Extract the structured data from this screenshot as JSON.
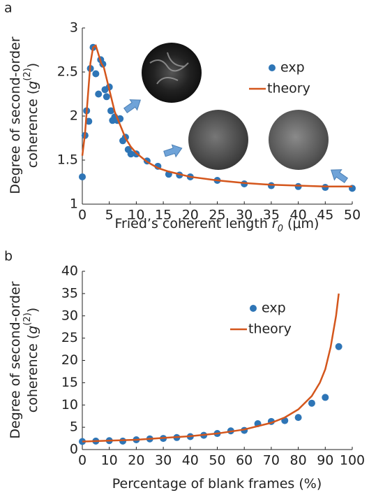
{
  "chart_data": [
    {
      "type": "line",
      "label": "a",
      "xlabel": [
        "Fried’s coherent length ",
        "r",
        "0",
        " (μm)"
      ],
      "ylabel": [
        "Degree of second-order",
        [
          "coherence (",
          "g",
          "(2)",
          ")"
        ]
      ],
      "xlim": [
        0,
        50
      ],
      "xticks": [
        0,
        5,
        10,
        15,
        20,
        25,
        30,
        35,
        40,
        45,
        50
      ],
      "ylim": [
        1,
        3
      ],
      "yticks": [
        1,
        1.5,
        2,
        2.5,
        3
      ],
      "legend": "upper right",
      "series": [
        {
          "name": "exp",
          "color": "#2e75b6",
          "marker": "dot",
          "x": [
            0,
            0.5,
            0.8,
            1.2,
            1.5,
            2.0,
            2.5,
            3.0,
            3.4,
            3.8,
            4.2,
            4.5,
            5.0,
            5.3,
            5.6,
            6.0,
            6.5,
            7.0,
            7.5,
            8.0,
            8.5,
            9.0,
            10,
            12,
            14,
            16,
            18,
            20,
            25,
            30,
            35,
            40,
            45,
            50
          ],
          "values": [
            1.31,
            1.78,
            2.06,
            1.94,
            2.54,
            2.78,
            2.48,
            2.25,
            2.64,
            2.59,
            2.3,
            2.22,
            2.33,
            2.06,
            1.95,
            1.99,
            1.95,
            1.97,
            1.72,
            1.76,
            1.62,
            1.57,
            1.57,
            1.49,
            1.43,
            1.34,
            1.33,
            1.31,
            1.27,
            1.23,
            1.21,
            1.2,
            1.19,
            1.18
          ]
        },
        {
          "name": "theory",
          "color": "#d4561c",
          "marker": "line",
          "x": [
            0,
            0.5,
            1,
            1.5,
            2,
            2.5,
            3,
            3.5,
            4,
            5,
            6,
            7,
            8,
            9,
            10,
            12,
            14,
            16,
            18,
            20,
            25,
            30,
            35,
            40,
            45,
            50
          ],
          "values": [
            1.55,
            1.8,
            2.2,
            2.6,
            2.78,
            2.8,
            2.7,
            2.6,
            2.55,
            2.3,
            2.05,
            1.9,
            1.75,
            1.65,
            1.58,
            1.48,
            1.41,
            1.37,
            1.34,
            1.31,
            1.27,
            1.24,
            1.22,
            1.21,
            1.2,
            1.2
          ]
        }
      ]
    },
    {
      "type": "line",
      "label": "b",
      "xlabel": [
        "Percentage of blank frames (%)"
      ],
      "ylabel": [
        "Degree of second-order",
        [
          "coherence (",
          "g",
          "(2)",
          ")"
        ]
      ],
      "xlim": [
        0,
        100
      ],
      "xticks": [
        0,
        10,
        20,
        30,
        40,
        50,
        60,
        70,
        80,
        90,
        100
      ],
      "ylim": [
        0,
        40
      ],
      "yticks": [
        0,
        5,
        10,
        15,
        20,
        25,
        30,
        35,
        40
      ],
      "legend": "upper right",
      "series": [
        {
          "name": "exp",
          "color": "#2e75b6",
          "marker": "dot",
          "x": [
            0,
            5,
            10,
            15,
            20,
            25,
            30,
            35,
            40,
            45,
            50,
            55,
            60,
            65,
            70,
            75,
            80,
            85,
            90,
            95
          ],
          "values": [
            1.8,
            1.9,
            2.0,
            1.9,
            2.2,
            2.4,
            2.5,
            2.7,
            2.9,
            3.2,
            3.6,
            4.2,
            4.3,
            5.8,
            6.3,
            6.5,
            7.2,
            10.4,
            11.7,
            23.1
          ]
        },
        {
          "name": "theory",
          "color": "#d4561c",
          "marker": "line",
          "x": [
            0,
            10,
            20,
            30,
            40,
            50,
            60,
            70,
            75,
            80,
            85,
            88,
            90,
            92,
            94,
            95
          ],
          "values": [
            1.8,
            2.0,
            2.2,
            2.6,
            3.0,
            3.6,
            4.5,
            6.0,
            7.2,
            9.0,
            12.0,
            15,
            18,
            23,
            30,
            35
          ]
        }
      ]
    }
  ]
}
